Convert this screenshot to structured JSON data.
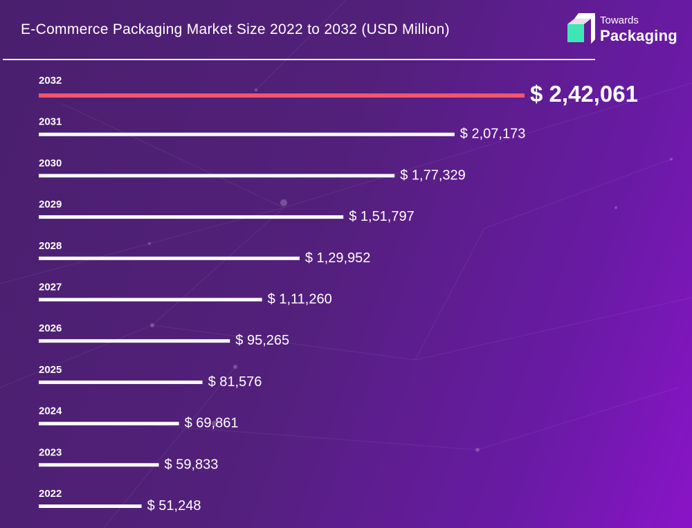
{
  "header": {
    "title": "E-Commerce Packaging Market Size 2022 to 2032 (USD Million)"
  },
  "logo": {
    "icon": "towards-packaging-logo-icon",
    "line1": "Towards",
    "line2": "Packaging"
  },
  "colors": {
    "background_left": "#4a1f6e",
    "background_right": "#8a14c8",
    "bar": "#ffffff",
    "highlight_bar": "#f0566e",
    "logo_accent": "#3ee6b4"
  },
  "chart_data": {
    "type": "bar",
    "orientation": "horizontal",
    "title": "E-Commerce Packaging Market Size 2022 to 2032 (USD Million)",
    "currency_prefix": "$",
    "categories": [
      "2032",
      "2031",
      "2030",
      "2029",
      "2028",
      "2027",
      "2026",
      "2025",
      "2024",
      "2023",
      "2022"
    ],
    "values": [
      242061,
      207173,
      177329,
      151797,
      129952,
      111260,
      95265,
      81576,
      69861,
      59833,
      51248
    ],
    "value_labels": [
      "$ 2,42,061",
      "$ 2,07,173",
      "$ 1,77,329",
      "$ 1,51,797",
      "$ 1,29,952",
      "$ 1,11,260",
      "$ 95,265",
      "$ 81,576",
      "$ 69,861",
      "$ 59,833",
      "$ 51,248"
    ],
    "highlight_category": "2032",
    "grid": false,
    "legend": "none"
  }
}
